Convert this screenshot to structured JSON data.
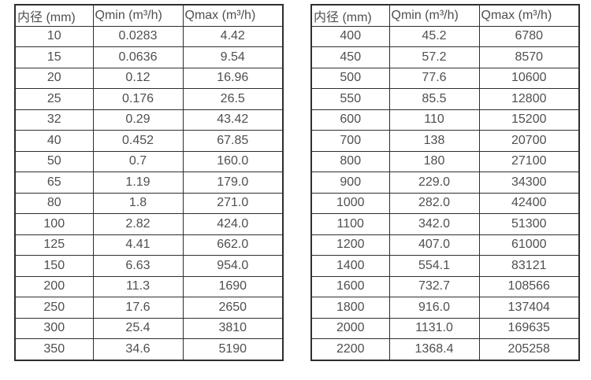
{
  "colors": {
    "border": "#2e2e2e",
    "text": "#4f4f4f",
    "background": "#ffffff"
  },
  "columns": [
    "内径 (mm)",
    "Qmin (m³/h)",
    "Qmax (m³/h)"
  ],
  "left_table": {
    "rows": [
      [
        "10",
        "0.0283",
        "4.42"
      ],
      [
        "15",
        "0.0636",
        "9.54"
      ],
      [
        "20",
        "0.12",
        "16.96"
      ],
      [
        "25",
        "0.176",
        "26.5"
      ],
      [
        "32",
        "0.29",
        "43.42"
      ],
      [
        "40",
        "0.452",
        "67.85"
      ],
      [
        "50",
        "0.7",
        "160.0"
      ],
      [
        "65",
        "1.19",
        "179.0"
      ],
      [
        "80",
        "1.8",
        "271.0"
      ],
      [
        "100",
        "2.82",
        "424.0"
      ],
      [
        "125",
        "4.41",
        "662.0"
      ],
      [
        "150",
        "6.63",
        "954.0"
      ],
      [
        "200",
        "11.3",
        "1690"
      ],
      [
        "250",
        "17.6",
        "2650"
      ],
      [
        "300",
        "25.4",
        "3810"
      ],
      [
        "350",
        "34.6",
        "5190"
      ]
    ]
  },
  "right_table": {
    "rows": [
      [
        "400",
        "45.2",
        "6780"
      ],
      [
        "450",
        "57.2",
        "8570"
      ],
      [
        "500",
        "77.6",
        "10600"
      ],
      [
        "550",
        "85.5",
        "12800"
      ],
      [
        "600",
        "110",
        "15200"
      ],
      [
        "700",
        "138",
        "20700"
      ],
      [
        "800",
        "180",
        "27100"
      ],
      [
        "900",
        "229.0",
        "34300"
      ],
      [
        "1000",
        "282.0",
        "42400"
      ],
      [
        "1100",
        "342.0",
        "51300"
      ],
      [
        "1200",
        "407.0",
        "61000"
      ],
      [
        "1400",
        "554.1",
        "83121"
      ],
      [
        "1600",
        "732.7",
        "108566"
      ],
      [
        "1800",
        "916.0",
        "137404"
      ],
      [
        "2000",
        "1131.0",
        "169635"
      ],
      [
        "2200",
        "1368.4",
        "205258"
      ]
    ]
  }
}
